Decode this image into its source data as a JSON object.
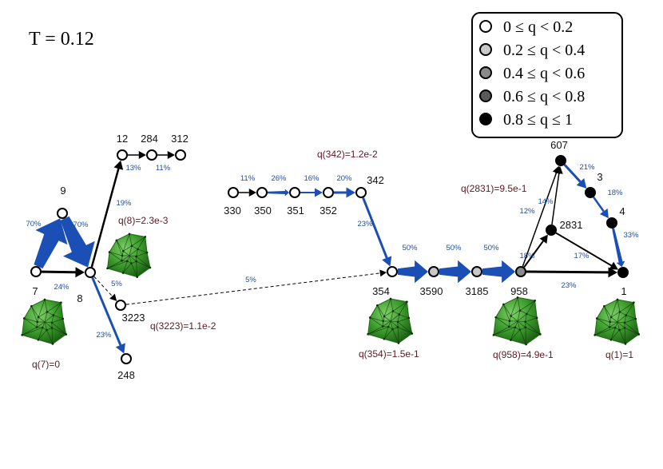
{
  "title": "T = 0.12",
  "legend": {
    "items": [
      {
        "label": "0 ≤ q < 0.2",
        "color": "#ffffff"
      },
      {
        "label": "0.2 ≤ q < 0.4",
        "color": "#c8c8c8"
      },
      {
        "label": "0.4 ≤ q < 0.6",
        "color": "#8a8a8a"
      },
      {
        "label": "0.6 ≤ q < 0.8",
        "color": "#5a5a5a"
      },
      {
        "label": "0.8 ≤ q ≤ 1",
        "color": "#000000"
      }
    ]
  },
  "colors": {
    "blue_edge": "#1c4fb5",
    "black_edge": "#000000",
    "pct_text": "#1f4fa0",
    "q_text": "#5a1a22",
    "cluster_fill": "#3c9a2c",
    "cluster_dark": "#1e6a16"
  },
  "nodes": [
    {
      "id": "7",
      "label": "7",
      "color": "#ffffff"
    },
    {
      "id": "9",
      "label": "9",
      "color": "#ffffff"
    },
    {
      "id": "8",
      "label": "8",
      "color": "#ffffff"
    },
    {
      "id": "12",
      "label": "12",
      "color": "#ffffff"
    },
    {
      "id": "284",
      "label": "284",
      "color": "#ffffff"
    },
    {
      "id": "312",
      "label": "312",
      "color": "#ffffff"
    },
    {
      "id": "3223",
      "label": "3223",
      "color": "#ffffff"
    },
    {
      "id": "248",
      "label": "248",
      "color": "#ffffff"
    },
    {
      "id": "330",
      "label": "330",
      "color": "#ffffff"
    },
    {
      "id": "350",
      "label": "350",
      "color": "#ffffff"
    },
    {
      "id": "351",
      "label": "351",
      "color": "#ffffff"
    },
    {
      "id": "352",
      "label": "352",
      "color": "#ffffff"
    },
    {
      "id": "342",
      "label": "342",
      "color": "#ffffff"
    },
    {
      "id": "354",
      "label": "354",
      "color": "#ffffff"
    },
    {
      "id": "3590",
      "label": "3590",
      "color": "#c8c8c8"
    },
    {
      "id": "3185",
      "label": "3185",
      "color": "#c8c8c8"
    },
    {
      "id": "958",
      "label": "958",
      "color": "#8a8a8a"
    },
    {
      "id": "2831",
      "label": "2831",
      "color": "#000000"
    },
    {
      "id": "607",
      "label": "607",
      "color": "#000000"
    },
    {
      "id": "3",
      "label": "3",
      "color": "#000000"
    },
    {
      "id": "4",
      "label": "4",
      "color": "#000000"
    },
    {
      "id": "1",
      "label": "1",
      "color": "#000000"
    }
  ],
  "edges": [
    {
      "from": "7",
      "to": "9",
      "pct": "70%",
      "color": "blue",
      "weight": 20
    },
    {
      "from": "9",
      "to": "8",
      "pct": "70%",
      "color": "blue",
      "weight": 20
    },
    {
      "from": "7",
      "to": "8",
      "pct": "24%",
      "color": "black",
      "weight": 3
    },
    {
      "from": "8",
      "to": "12",
      "pct": "19%",
      "color": "black",
      "weight": 2.5
    },
    {
      "from": "12",
      "to": "284",
      "pct": "13%",
      "color": "black",
      "weight": 1.5
    },
    {
      "from": "284",
      "to": "312",
      "pct": "11%",
      "color": "black",
      "weight": 1.5
    },
    {
      "from": "8",
      "to": "3223",
      "pct": "5%",
      "color": "black",
      "weight": 1,
      "dashed": true
    },
    {
      "from": "8",
      "to": "248",
      "pct": "23%",
      "color": "blue",
      "weight": 3
    },
    {
      "from": "3223",
      "to": "354",
      "pct": "5%",
      "color": "black",
      "weight": 0.9,
      "dashed": true
    },
    {
      "from": "330",
      "to": "350",
      "pct": "11%",
      "color": "black",
      "weight": 1.5
    },
    {
      "from": "350",
      "to": "351",
      "pct": "26%",
      "color": "blue",
      "weight": 4
    },
    {
      "from": "351",
      "to": "352",
      "pct": "16%",
      "color": "blue",
      "weight": 2
    },
    {
      "from": "352",
      "to": "342",
      "pct": "20%",
      "color": "blue",
      "weight": 3
    },
    {
      "from": "342",
      "to": "354",
      "pct": "23%",
      "color": "blue",
      "weight": 3
    },
    {
      "from": "354",
      "to": "3590",
      "pct": "50%",
      "color": "blue",
      "weight": 13
    },
    {
      "from": "3590",
      "to": "3185",
      "pct": "50%",
      "color": "blue",
      "weight": 13
    },
    {
      "from": "3185",
      "to": "958",
      "pct": "50%",
      "color": "blue",
      "weight": 13
    },
    {
      "from": "958",
      "to": "2831",
      "pct": "18%",
      "color": "black",
      "weight": 2
    },
    {
      "from": "958",
      "to": "607",
      "pct": "12%",
      "color": "black",
      "weight": 1.5
    },
    {
      "from": "958",
      "to": "1",
      "pct": "23%",
      "color": "black",
      "weight": 3
    },
    {
      "from": "2831",
      "to": "607",
      "pct": "14%",
      "color": "black",
      "weight": 1.5
    },
    {
      "from": "2831",
      "to": "1",
      "pct": "17%",
      "color": "black",
      "weight": 2
    },
    {
      "from": "607",
      "to": "3",
      "pct": "21%",
      "color": "blue",
      "weight": 3
    },
    {
      "from": "3",
      "to": "4",
      "pct": "18%",
      "color": "blue",
      "weight": 2.5
    },
    {
      "from": "4",
      "to": "1",
      "pct": "33%",
      "color": "blue",
      "weight": 5
    }
  ],
  "q_labels": [
    {
      "id": "q8",
      "text": "q(8)=2.3e-3"
    },
    {
      "id": "q7",
      "text": "q(7)=0"
    },
    {
      "id": "q3223",
      "text": "q(3223)=1.1e-2"
    },
    {
      "id": "q342",
      "text": "q(342)=1.2e-2"
    },
    {
      "id": "q354",
      "text": "q(354)=1.5e-1"
    },
    {
      "id": "q2831",
      "text": "q(2831)=9.5e-1"
    },
    {
      "id": "q958",
      "text": "q(958)=4.9e-1"
    },
    {
      "id": "q1",
      "text": "q(1)=1"
    }
  ]
}
